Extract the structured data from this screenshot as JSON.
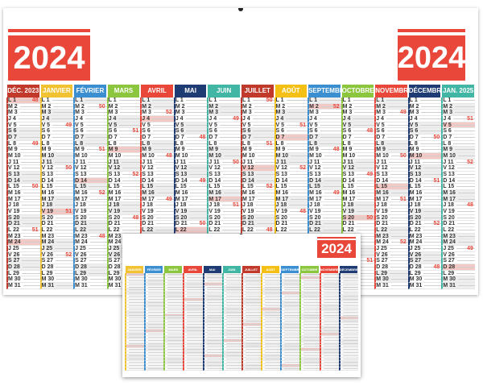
{
  "main_calendar": {
    "year_left": "2024",
    "year_right": "2024",
    "months": [
      {
        "label": "DÉC. 2023",
        "color": "#c0392b"
      },
      {
        "label": "JANVIER",
        "color": "#f1c232"
      },
      {
        "label": "FÉVRIER",
        "color": "#3b8fd1"
      },
      {
        "label": "MARS",
        "color": "#8cc63f"
      },
      {
        "label": "AVRIL",
        "color": "#e8473a"
      },
      {
        "label": "MAI",
        "color": "#1f3b73"
      },
      {
        "label": "JUIN",
        "color": "#41b6a4"
      },
      {
        "label": "JUILLET",
        "color": "#c0392b"
      },
      {
        "label": "AOÛT",
        "color": "#f5c016"
      },
      {
        "label": "SEPTEMBRE",
        "color": "#3b8fd1"
      },
      {
        "label": "OCTOBRE",
        "color": "#8cc63f"
      },
      {
        "label": "NOVEMBRE",
        "color": "#e8473a"
      },
      {
        "label": "DÉCEMBRE",
        "color": "#1f3b73"
      },
      {
        "label": "JAN. 2025",
        "color": "#41b6a4"
      }
    ],
    "day_samples": [
      "L 1",
      "M 2",
      "M 3",
      "J 4",
      "V 5",
      "S 6",
      "D 7",
      "L 8",
      "M 9",
      "M 10",
      "J 11",
      "V 12",
      "S 13",
      "D 14",
      "L 15",
      "M 16",
      "M 17",
      "J 18",
      "V 19",
      "S 20",
      "D 21",
      "L 22",
      "M 23",
      "M 24",
      "J 25",
      "V 26",
      "S 27",
      "D 28",
      "L 29",
      "M 30",
      "M 31"
    ],
    "week_samples": [
      "48",
      "49",
      "50",
      "51",
      "52"
    ]
  },
  "small_calendar": {
    "year": "2024",
    "months": [
      {
        "label": "JANVIER",
        "color": "#f1c232"
      },
      {
        "label": "FÉVRIER",
        "color": "#3b8fd1"
      },
      {
        "label": "MARS",
        "color": "#8cc63f"
      },
      {
        "label": "AVRIL",
        "color": "#e8473a"
      },
      {
        "label": "MAI",
        "color": "#1f3b73"
      },
      {
        "label": "JUIN",
        "color": "#41b6a4"
      },
      {
        "label": "JUILLET",
        "color": "#c0392b"
      },
      {
        "label": "AOÛT",
        "color": "#f5c016"
      },
      {
        "label": "SEPTEMBRE",
        "color": "#3b8fd1"
      },
      {
        "label": "OCTOBRE",
        "color": "#8cc63f"
      },
      {
        "label": "NOVEMBRE",
        "color": "#e8473a"
      },
      {
        "label": "DÉCEMBRE",
        "color": "#1f3b73"
      }
    ]
  }
}
